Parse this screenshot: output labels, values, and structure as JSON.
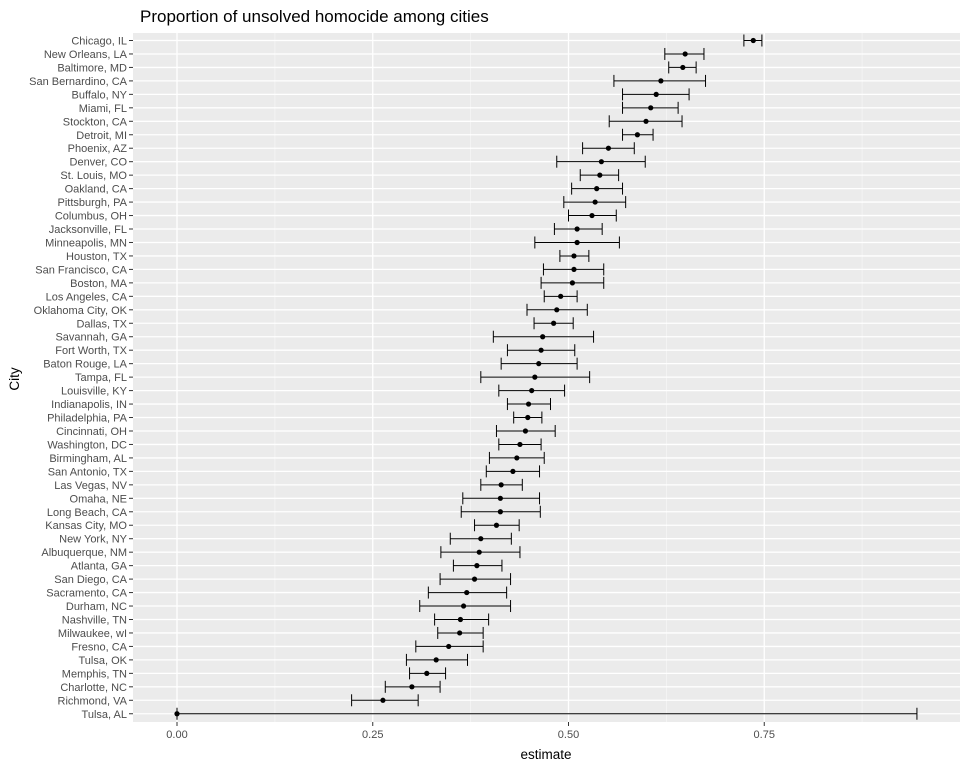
{
  "chart_data": {
    "type": "errorbar",
    "title": "Proportion of unsolved homocide among cities",
    "xlabel": "estimate",
    "ylabel": "City",
    "xlim": [
      -0.047,
      0.983
    ],
    "x_ticks": [
      0.0,
      0.25,
      0.5,
      0.75
    ],
    "x_tick_labels": [
      "0.00",
      "0.25",
      "0.50",
      "0.75"
    ],
    "grid": true,
    "cities": [
      {
        "city": "Chicago, IL",
        "estimate": 0.736,
        "conf_low": 0.724,
        "conf_high": 0.747
      },
      {
        "city": "New Orleans, LA",
        "estimate": 0.649,
        "conf_low": 0.623,
        "conf_high": 0.673
      },
      {
        "city": "Baltimore, MD",
        "estimate": 0.646,
        "conf_low": 0.628,
        "conf_high": 0.663
      },
      {
        "city": "San Bernardino, CA",
        "estimate": 0.618,
        "conf_low": 0.558,
        "conf_high": 0.675
      },
      {
        "city": "Buffalo, NY",
        "estimate": 0.612,
        "conf_low": 0.569,
        "conf_high": 0.654
      },
      {
        "city": "Miami, FL",
        "estimate": 0.605,
        "conf_low": 0.569,
        "conf_high": 0.64
      },
      {
        "city": "Stockton, CA",
        "estimate": 0.599,
        "conf_low": 0.552,
        "conf_high": 0.645
      },
      {
        "city": "Detroit, MI",
        "estimate": 0.588,
        "conf_low": 0.569,
        "conf_high": 0.608
      },
      {
        "city": "Phoenix, AZ",
        "estimate": 0.551,
        "conf_low": 0.518,
        "conf_high": 0.584
      },
      {
        "city": "Denver, CO",
        "estimate": 0.542,
        "conf_low": 0.485,
        "conf_high": 0.598
      },
      {
        "city": "St. Louis, MO",
        "estimate": 0.54,
        "conf_low": 0.515,
        "conf_high": 0.564
      },
      {
        "city": "Oakland, CA",
        "estimate": 0.536,
        "conf_low": 0.504,
        "conf_high": 0.569
      },
      {
        "city": "Pittsburgh, PA",
        "estimate": 0.534,
        "conf_low": 0.494,
        "conf_high": 0.573
      },
      {
        "city": "Columbus, OH",
        "estimate": 0.53,
        "conf_low": 0.5,
        "conf_high": 0.561
      },
      {
        "city": "Jacksonville, FL",
        "estimate": 0.511,
        "conf_low": 0.482,
        "conf_high": 0.543
      },
      {
        "city": "Minneapolis, MN",
        "estimate": 0.511,
        "conf_low": 0.457,
        "conf_high": 0.565
      },
      {
        "city": "Houston, TX",
        "estimate": 0.507,
        "conf_low": 0.489,
        "conf_high": 0.526
      },
      {
        "city": "San Francisco, CA",
        "estimate": 0.507,
        "conf_low": 0.468,
        "conf_high": 0.545
      },
      {
        "city": "Boston, MA",
        "estimate": 0.505,
        "conf_low": 0.465,
        "conf_high": 0.545
      },
      {
        "city": "Los Angeles, CA",
        "estimate": 0.49,
        "conf_low": 0.469,
        "conf_high": 0.511
      },
      {
        "city": "Oklahoma City, OK",
        "estimate": 0.485,
        "conf_low": 0.447,
        "conf_high": 0.524
      },
      {
        "city": "Dallas, TX",
        "estimate": 0.481,
        "conf_low": 0.456,
        "conf_high": 0.506
      },
      {
        "city": "Savannah, GA",
        "estimate": 0.467,
        "conf_low": 0.404,
        "conf_high": 0.532
      },
      {
        "city": "Fort Worth, TX",
        "estimate": 0.465,
        "conf_low": 0.422,
        "conf_high": 0.508
      },
      {
        "city": "Baton Rouge, LA",
        "estimate": 0.462,
        "conf_low": 0.414,
        "conf_high": 0.511
      },
      {
        "city": "Tampa, FL",
        "estimate": 0.457,
        "conf_low": 0.388,
        "conf_high": 0.527
      },
      {
        "city": "Louisville, KY",
        "estimate": 0.453,
        "conf_low": 0.411,
        "conf_high": 0.495
      },
      {
        "city": "Indianapolis, IN",
        "estimate": 0.449,
        "conf_low": 0.422,
        "conf_high": 0.477
      },
      {
        "city": "Philadelphia, PA",
        "estimate": 0.448,
        "conf_low": 0.43,
        "conf_high": 0.466
      },
      {
        "city": "Cincinnati, OH",
        "estimate": 0.445,
        "conf_low": 0.408,
        "conf_high": 0.483
      },
      {
        "city": "Washington, DC",
        "estimate": 0.438,
        "conf_low": 0.411,
        "conf_high": 0.465
      },
      {
        "city": "Birmingham, AL",
        "estimate": 0.434,
        "conf_low": 0.399,
        "conf_high": 0.469
      },
      {
        "city": "San Antonio, TX",
        "estimate": 0.429,
        "conf_low": 0.395,
        "conf_high": 0.463
      },
      {
        "city": "Las Vegas, NV",
        "estimate": 0.414,
        "conf_low": 0.388,
        "conf_high": 0.441
      },
      {
        "city": "Omaha, NE",
        "estimate": 0.413,
        "conf_low": 0.365,
        "conf_high": 0.463
      },
      {
        "city": "Long Beach, CA",
        "estimate": 0.413,
        "conf_low": 0.363,
        "conf_high": 0.464
      },
      {
        "city": "Kansas City, MO",
        "estimate": 0.408,
        "conf_low": 0.38,
        "conf_high": 0.437
      },
      {
        "city": "New York, NY",
        "estimate": 0.388,
        "conf_low": 0.349,
        "conf_high": 0.427
      },
      {
        "city": "Albuquerque, NM",
        "estimate": 0.386,
        "conf_low": 0.337,
        "conf_high": 0.438
      },
      {
        "city": "Atlanta, GA",
        "estimate": 0.383,
        "conf_low": 0.353,
        "conf_high": 0.415
      },
      {
        "city": "San Diego, CA",
        "estimate": 0.38,
        "conf_low": 0.336,
        "conf_high": 0.426
      },
      {
        "city": "Sacramento, CA",
        "estimate": 0.37,
        "conf_low": 0.321,
        "conf_high": 0.421
      },
      {
        "city": "Durham, NC",
        "estimate": 0.366,
        "conf_low": 0.31,
        "conf_high": 0.426
      },
      {
        "city": "Nashville, TN",
        "estimate": 0.362,
        "conf_low": 0.329,
        "conf_high": 0.398
      },
      {
        "city": "Milwaukee, wI",
        "estimate": 0.361,
        "conf_low": 0.333,
        "conf_high": 0.391
      },
      {
        "city": "Fresno, CA",
        "estimate": 0.347,
        "conf_low": 0.305,
        "conf_high": 0.391
      },
      {
        "city": "Tulsa, OK",
        "estimate": 0.331,
        "conf_low": 0.293,
        "conf_high": 0.371
      },
      {
        "city": "Memphis, TN",
        "estimate": 0.319,
        "conf_low": 0.297,
        "conf_high": 0.343
      },
      {
        "city": "Charlotte, NC",
        "estimate": 0.3,
        "conf_low": 0.266,
        "conf_high": 0.336
      },
      {
        "city": "Richmond, VA",
        "estimate": 0.263,
        "conf_low": 0.223,
        "conf_high": 0.308
      },
      {
        "city": "Tulsa, AL",
        "estimate": 0.0,
        "conf_low": 0.0,
        "conf_high": 0.945
      }
    ]
  }
}
